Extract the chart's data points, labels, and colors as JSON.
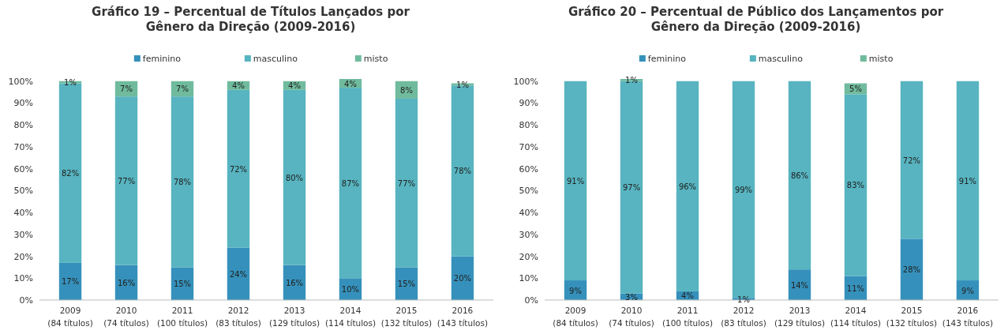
{
  "chart_data": [
    {
      "type": "bar",
      "stacked": true,
      "title": "Gráfico 19 – Percentual de Títulos Lançados por\nGênero da Direção (2009-2016)",
      "categories": [
        "2009\n(84 títulos)",
        "2010\n(74 títulos)",
        "2011\n(100 títulos)",
        "2012\n(83 títulos)",
        "2013\n(129 títulos)",
        "2014\n(114 títulos)",
        "2015\n(132 títulos)",
        "2016\n(143 títulos)"
      ],
      "series": [
        {
          "name": "feminino",
          "color": "#3591bb",
          "values": [
            17,
            16,
            15,
            24,
            16,
            10,
            15,
            20
          ],
          "value_labels": [
            "17%",
            "16%",
            "15%",
            "24%",
            "16%",
            "10%",
            "15%",
            "20%"
          ]
        },
        {
          "name": "masculino",
          "color": "#57b4c0",
          "values": [
            82,
            77,
            78,
            72,
            80,
            87,
            77,
            78
          ],
          "value_labels": [
            "82%",
            "77%",
            "78%",
            "72%",
            "80%",
            "87%",
            "77%",
            "78%"
          ]
        },
        {
          "name": "misto",
          "color": "#70bb9e",
          "values": [
            1,
            7,
            7,
            4,
            4,
            4,
            8,
            1
          ],
          "value_labels": [
            "1%",
            "7%",
            "7%",
            "4%",
            "4%",
            "4%",
            "8%",
            "1%"
          ]
        }
      ],
      "ylim": [
        0,
        101
      ],
      "yticks": [
        {
          "value": 0,
          "label": "0%"
        },
        {
          "value": 10,
          "label": "10%"
        },
        {
          "value": 20,
          "label": "20%"
        },
        {
          "value": 30,
          "label": "30%"
        },
        {
          "value": 40,
          "label": "40%"
        },
        {
          "value": 50,
          "label": "50%"
        },
        {
          "value": 60,
          "label": "60%"
        },
        {
          "value": 70,
          "label": "70%"
        },
        {
          "value": 80,
          "label": "80%"
        },
        {
          "value": 90,
          "label": "90%"
        },
        {
          "value": 100,
          "label": "100%"
        }
      ],
      "legend": "top",
      "grid": false
    },
    {
      "type": "bar",
      "stacked": true,
      "title": "Gráfico 20 – Percentual de Público dos Lançamentos por\nGênero da Direção (2009-2016)",
      "categories": [
        "2009\n(84 títulos)",
        "2010\n(74 títulos)",
        "2011\n(100 títulos)",
        "2012\n(83 títulos)",
        "2013\n(129 títulos)",
        "2014\n(114 títulos)",
        "2015\n(132 títulos)",
        "2016\n(143 títulos)"
      ],
      "series": [
        {
          "name": "feminino",
          "color": "#3591bb",
          "values": [
            9,
            3,
            4,
            1,
            14,
            11,
            28,
            9
          ],
          "value_labels": [
            "9%",
            "3%",
            "4%",
            "1%",
            "14%",
            "11%",
            "28%",
            "9%"
          ]
        },
        {
          "name": "masculino",
          "color": "#57b4c0",
          "values": [
            91,
            97,
            96,
            99,
            86,
            83,
            72,
            91
          ],
          "value_labels": [
            "91%",
            "97%",
            "96%",
            "99%",
            "86%",
            "83%",
            "72%",
            "91%"
          ]
        },
        {
          "name": "misto",
          "color": "#70bb9e",
          "values": [
            0,
            1,
            0,
            0,
            0,
            5,
            0,
            0
          ],
          "value_labels": [
            null,
            "1%",
            null,
            null,
            null,
            "5%",
            null,
            null
          ]
        }
      ],
      "ylim": [
        0,
        101
      ],
      "yticks": [
        {
          "value": 0,
          "label": "0%"
        },
        {
          "value": 10,
          "label": "10%"
        },
        {
          "value": 20,
          "label": "20%"
        },
        {
          "value": 30,
          "label": "30%"
        },
        {
          "value": 40,
          "label": "40%"
        },
        {
          "value": 50,
          "label": "50%"
        },
        {
          "value": 60,
          "label": "60%"
        },
        {
          "value": 70,
          "label": "70%"
        },
        {
          "value": 80,
          "label": "80%"
        },
        {
          "value": 90,
          "label": "90%"
        },
        {
          "value": 100,
          "label": "100%"
        }
      ],
      "legend": "top",
      "grid": false
    }
  ]
}
